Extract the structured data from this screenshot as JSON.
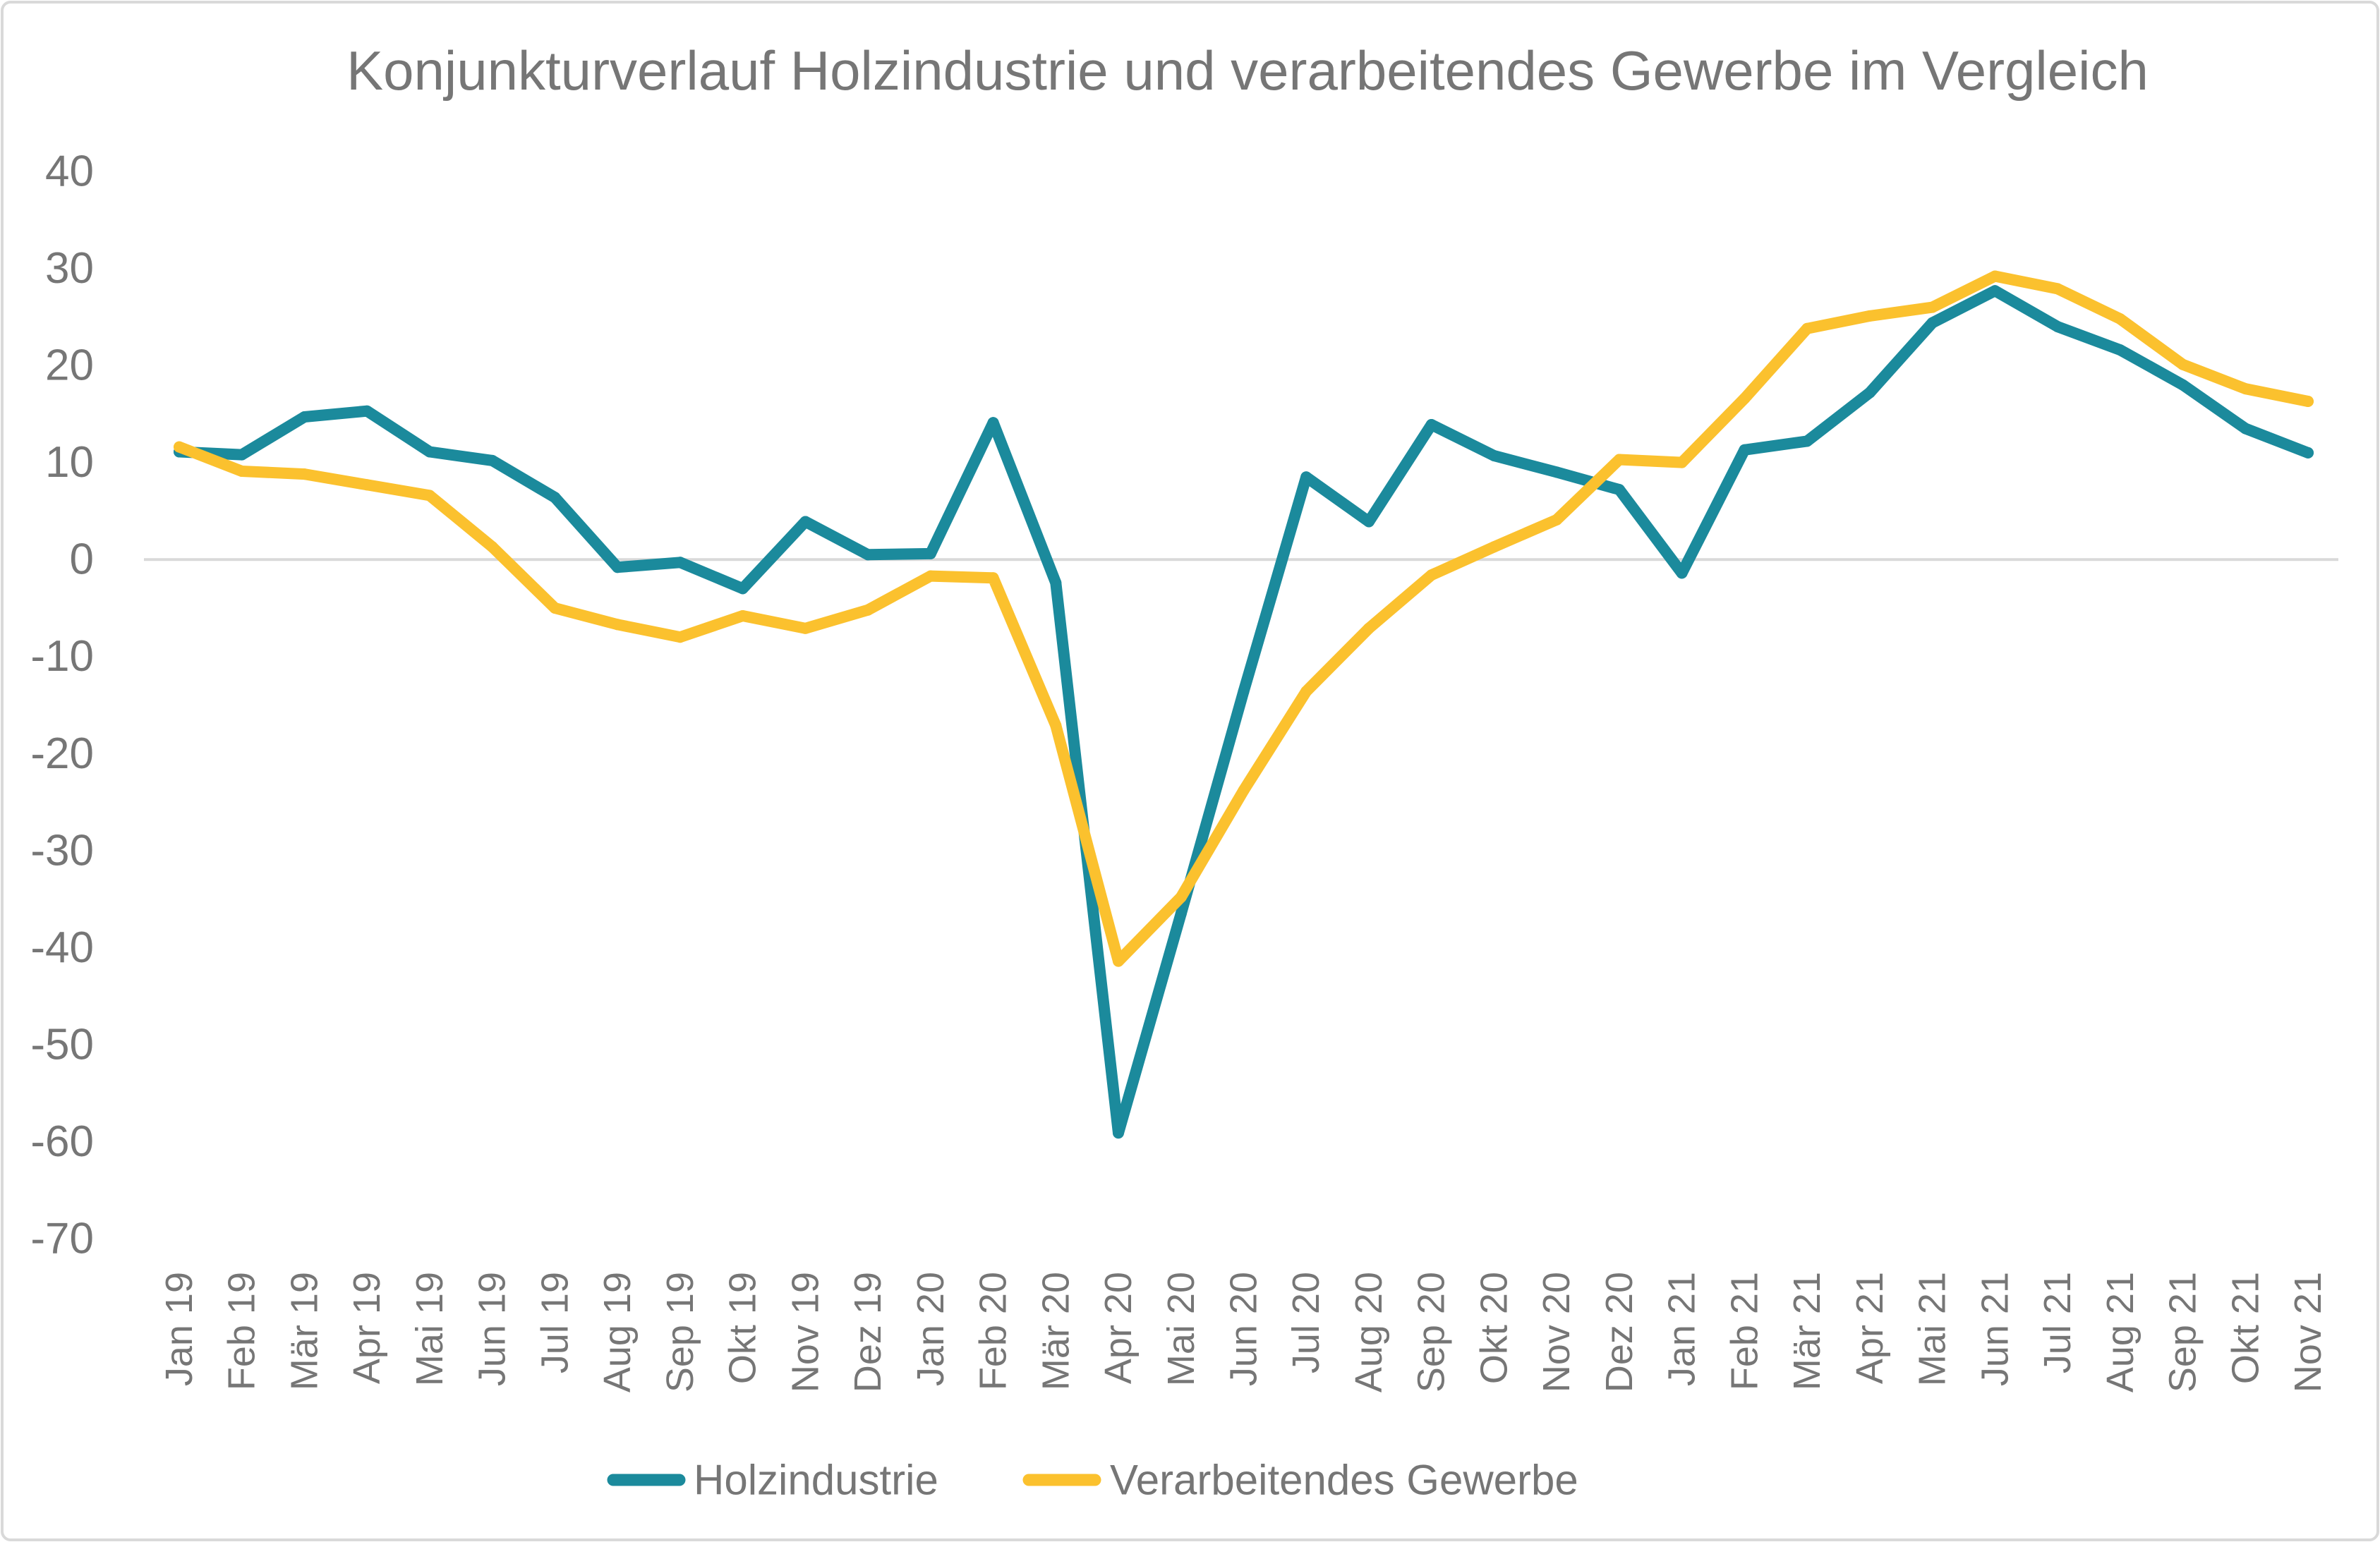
{
  "chart_data": {
    "type": "line",
    "title": "Konjunkturverlauf Holzindustrie und verarbeitendes Gewerbe im Vergleich",
    "xlabel": "",
    "ylabel": "",
    "categories": [
      "Jan 19",
      "Feb 19",
      "Mär 19",
      "Apr 19",
      "Mai 19",
      "Jun 19",
      "Jul 19",
      "Aug 19",
      "Sep 19",
      "Okt 19",
      "Nov 19",
      "Dez 19",
      "Jan 20",
      "Feb 20",
      "Mär 20",
      "Apr 20",
      "Mai 20",
      "Jun 20",
      "Jul 20",
      "Aug 20",
      "Sep 20",
      "Okt 20",
      "Nov 20",
      "Dez 20",
      "Jan 21",
      "Feb 21",
      "Mär 21",
      "Apr 21",
      "Mai 21",
      "Jun 21",
      "Jul 21",
      "Aug 21",
      "Sep 21",
      "Okt 21",
      "Nov 21"
    ],
    "series": [
      {
        "name": "Holzindustrie",
        "color": "#1b8a9c",
        "values": [
          11.1,
          10.8,
          14.7,
          15.3,
          11.1,
          10.2,
          6.4,
          -0.8,
          -0.3,
          -3.0,
          3.9,
          0.5,
          0.6,
          14.1,
          -2.4,
          -59.1,
          -36.5,
          -13.6,
          8.5,
          3.9,
          13.9,
          10.7,
          9.0,
          7.2,
          -1.4,
          11.3,
          12.2,
          17.2,
          24.4,
          27.7,
          24.0,
          21.6,
          18.0,
          13.5,
          11.0
        ]
      },
      {
        "name": "Verarbeitendes Gewerbe",
        "color": "#fbc12e",
        "values": [
          11.6,
          9.1,
          8.8,
          7.7,
          6.6,
          1.3,
          -5.0,
          -6.7,
          -8.0,
          -5.8,
          -7.1,
          -5.2,
          -1.7,
          -1.9,
          -17.1,
          -41.4,
          -34.8,
          -23.8,
          -13.6,
          -7.1,
          -1.6,
          1.3,
          4.1,
          10.3,
          10.0,
          16.6,
          23.8,
          25.1,
          26.0,
          29.2,
          27.9,
          24.8,
          20.1,
          17.6,
          16.3
        ]
      }
    ],
    "ylim": [
      -70,
      40
    ],
    "yticks": [
      40,
      30,
      20,
      10,
      0,
      -10,
      -20,
      -30,
      -40,
      -50,
      -60,
      -70
    ],
    "grid": false,
    "zero_line": true,
    "legend": "bottom"
  }
}
